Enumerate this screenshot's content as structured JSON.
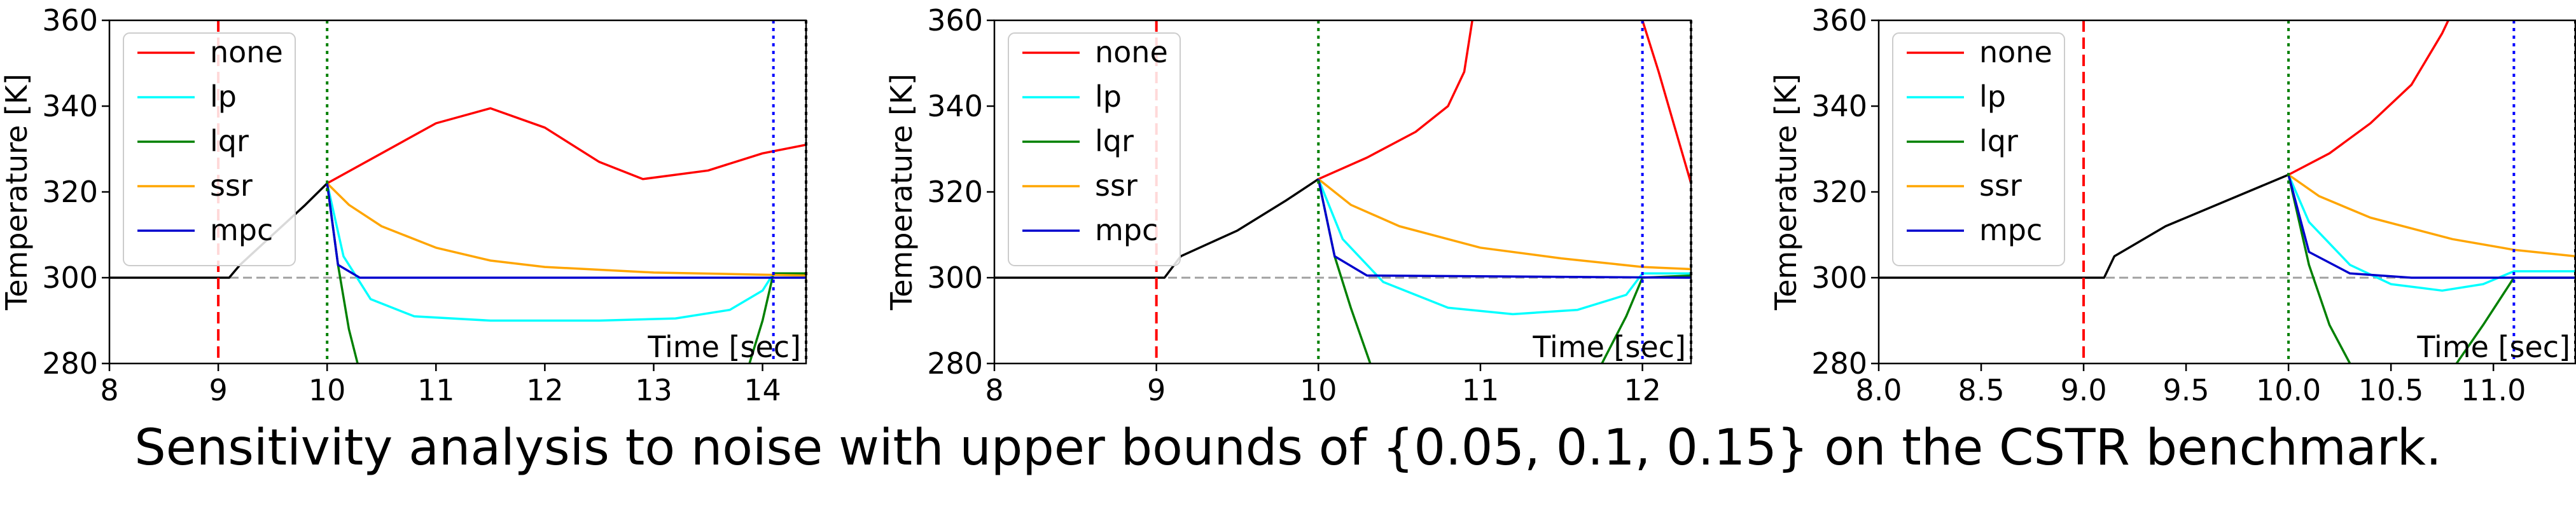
{
  "caption": "Sensitivity analysis to noise with upper bounds of {0.05, 0.1, 0.15} on the CSTR benchmark.",
  "chart_data": [
    {
      "type": "line",
      "xlabel": "Time [sec]",
      "ylabel": "Temperature [K]",
      "xlim": [
        8,
        14.4
      ],
      "ylim": [
        280,
        360
      ],
      "xticks": [
        8,
        9,
        10,
        11,
        12,
        13,
        14
      ],
      "xtick_labels": [
        "8",
        "9",
        "10",
        "11",
        "12",
        "13",
        "14"
      ],
      "yticks": [
        280,
        300,
        320,
        340,
        360
      ],
      "ytick_labels": [
        "280",
        "300",
        "320",
        "340",
        "360"
      ],
      "legend": {
        "position": "top-left",
        "entries": [
          "none",
          "lp",
          "lqr",
          "ssr",
          "mpc"
        ]
      },
      "reference_line": {
        "y": 300,
        "color": "#a0a0a0",
        "style": "dashed"
      },
      "vlines": [
        {
          "x": 9,
          "color": "#ff0000",
          "style": "dashed"
        },
        {
          "x": 10,
          "color": "#008000",
          "style": "dotted"
        },
        {
          "x": 14.1,
          "color": "#0000ff",
          "style": "dotted"
        },
        {
          "x": 14.4,
          "color": "#000000",
          "style": "dotted"
        }
      ],
      "series": [
        {
          "name": "black",
          "color": "#000000",
          "points": [
            [
              8,
              300
            ],
            [
              9.1,
              300
            ],
            [
              9.2,
              303
            ],
            [
              9.5,
              310
            ],
            [
              9.8,
              317
            ],
            [
              10,
              322
            ]
          ]
        },
        {
          "name": "none",
          "color": "#ff0000",
          "points": [
            [
              10,
              322
            ],
            [
              10.5,
              329
            ],
            [
              11,
              336
            ],
            [
              11.5,
              339.5
            ],
            [
              12,
              335
            ],
            [
              12.5,
              327
            ],
            [
              12.9,
              323
            ],
            [
              13.5,
              325
            ],
            [
              14,
              329
            ],
            [
              14.4,
              331
            ]
          ]
        },
        {
          "name": "lp",
          "color": "#00ffff",
          "points": [
            [
              10,
              322
            ],
            [
              10.15,
              305
            ],
            [
              10.4,
              295
            ],
            [
              10.8,
              291
            ],
            [
              11.5,
              290
            ],
            [
              12.5,
              290
            ],
            [
              13.2,
              290.5
            ],
            [
              13.7,
              292.5
            ],
            [
              14,
              297
            ],
            [
              14.1,
              301
            ],
            [
              14.4,
              300.5
            ]
          ]
        },
        {
          "name": "lqr",
          "color": "#008000",
          "points": [
            [
              10,
              322
            ],
            [
              10.1,
              303
            ],
            [
              10.2,
              288
            ],
            [
              10.28,
              280
            ]
          ]
        },
        {
          "name": "lqr",
          "color": "#008000",
          "points": [
            [
              13.88,
              280
            ],
            [
              14,
              290
            ],
            [
              14.1,
              301
            ],
            [
              14.4,
              301
            ]
          ]
        },
        {
          "name": "ssr",
          "color": "#ffa500",
          "points": [
            [
              10,
              322
            ],
            [
              10.2,
              317
            ],
            [
              10.5,
              312
            ],
            [
              11,
              307
            ],
            [
              11.5,
              304
            ],
            [
              12,
              302.5
            ],
            [
              13,
              301.2
            ],
            [
              14.4,
              300.5
            ]
          ]
        },
        {
          "name": "mpc",
          "color": "#0000cd",
          "points": [
            [
              10,
              322
            ],
            [
              10.1,
              303
            ],
            [
              10.3,
              300
            ],
            [
              14.4,
              300
            ]
          ]
        }
      ]
    },
    {
      "type": "line",
      "xlabel": "Time [sec]",
      "ylabel": "Temperature [K]",
      "xlim": [
        8,
        12.3
      ],
      "ylim": [
        280,
        360
      ],
      "xticks": [
        8,
        9,
        10,
        11,
        12
      ],
      "xtick_labels": [
        "8",
        "9",
        "10",
        "11",
        "12"
      ],
      "yticks": [
        280,
        300,
        320,
        340,
        360
      ],
      "ytick_labels": [
        "280",
        "300",
        "320",
        "340",
        "360"
      ],
      "legend": {
        "position": "top-left",
        "entries": [
          "none",
          "lp",
          "lqr",
          "ssr",
          "mpc"
        ]
      },
      "reference_line": {
        "y": 300,
        "color": "#a0a0a0",
        "style": "dashed"
      },
      "vlines": [
        {
          "x": 9,
          "color": "#ff0000",
          "style": "dashed"
        },
        {
          "x": 10,
          "color": "#008000",
          "style": "dotted"
        },
        {
          "x": 12,
          "color": "#0000ff",
          "style": "dotted"
        },
        {
          "x": 12.3,
          "color": "#000000",
          "style": "dotted"
        }
      ],
      "series": [
        {
          "name": "black",
          "color": "#000000",
          "points": [
            [
              8,
              300
            ],
            [
              9.05,
              300
            ],
            [
              9.15,
              305
            ],
            [
              9.5,
              311
            ],
            [
              9.8,
              318
            ],
            [
              10,
              323
            ]
          ]
        },
        {
          "name": "none",
          "color": "#ff0000",
          "points": [
            [
              10,
              323
            ],
            [
              10.3,
              328
            ],
            [
              10.6,
              334
            ],
            [
              10.8,
              340
            ],
            [
              10.9,
              348
            ],
            [
              10.95,
              360
            ]
          ]
        },
        {
          "name": "none",
          "color": "#ff0000",
          "points": [
            [
              12,
              360
            ],
            [
              12.1,
              348
            ],
            [
              12.2,
              335
            ],
            [
              12.3,
              322
            ]
          ]
        },
        {
          "name": "lp",
          "color": "#00ffff",
          "points": [
            [
              10,
              323
            ],
            [
              10.15,
              309
            ],
            [
              10.4,
              299
            ],
            [
              10.8,
              293
            ],
            [
              11.2,
              291.5
            ],
            [
              11.6,
              292.5
            ],
            [
              11.9,
              296
            ],
            [
              12,
              301
            ],
            [
              12.3,
              301
            ]
          ]
        },
        {
          "name": "lqr",
          "color": "#008000",
          "points": [
            [
              10,
              323
            ],
            [
              10.1,
              305
            ],
            [
              10.2,
              293
            ],
            [
              10.32,
              280
            ]
          ]
        },
        {
          "name": "lqr",
          "color": "#008000",
          "points": [
            [
              11.75,
              280
            ],
            [
              11.9,
              291
            ],
            [
              12,
              300
            ],
            [
              12.3,
              300.5
            ]
          ]
        },
        {
          "name": "ssr",
          "color": "#ffa500",
          "points": [
            [
              10,
              323
            ],
            [
              10.2,
              317
            ],
            [
              10.5,
              312
            ],
            [
              11,
              307
            ],
            [
              11.5,
              304.5
            ],
            [
              12,
              302.5
            ],
            [
              12.3,
              302
            ]
          ]
        },
        {
          "name": "mpc",
          "color": "#0000cd",
          "points": [
            [
              10,
              323
            ],
            [
              10.1,
              305
            ],
            [
              10.3,
              300.5
            ],
            [
              12.3,
              300
            ]
          ]
        }
      ]
    },
    {
      "type": "line",
      "xlabel": "Time [sec]",
      "ylabel": "Temperature [K]",
      "xlim": [
        8,
        11.4
      ],
      "ylim": [
        280,
        360
      ],
      "xticks": [
        8,
        8.5,
        9,
        9.5,
        10,
        10.5,
        11
      ],
      "xtick_labels": [
        "8.0",
        "8.5",
        "9.0",
        "9.5",
        "10.0",
        "10.5",
        "11.0"
      ],
      "yticks": [
        280,
        300,
        320,
        340,
        360
      ],
      "ytick_labels": [
        "280",
        "300",
        "320",
        "340",
        "360"
      ],
      "legend": {
        "position": "top-left",
        "entries": [
          "none",
          "lp",
          "lqr",
          "ssr",
          "mpc"
        ]
      },
      "reference_line": {
        "y": 300,
        "color": "#a0a0a0",
        "style": "dashed"
      },
      "vlines": [
        {
          "x": 9,
          "color": "#ff0000",
          "style": "dashed"
        },
        {
          "x": 10,
          "color": "#008000",
          "style": "dotted"
        },
        {
          "x": 11.1,
          "color": "#0000ff",
          "style": "dotted"
        },
        {
          "x": 11.4,
          "color": "#000000",
          "style": "dotted"
        }
      ],
      "series": [
        {
          "name": "black",
          "color": "#000000",
          "points": [
            [
              8,
              300
            ],
            [
              9.1,
              300
            ],
            [
              9.15,
              305
            ],
            [
              9.4,
              312
            ],
            [
              9.7,
              318
            ],
            [
              10,
              324
            ]
          ]
        },
        {
          "name": "none",
          "color": "#ff0000",
          "points": [
            [
              10,
              324
            ],
            [
              10.2,
              329
            ],
            [
              10.4,
              336
            ],
            [
              10.6,
              345
            ],
            [
              10.75,
              357
            ],
            [
              10.78,
              360
            ]
          ]
        },
        {
          "name": "lp",
          "color": "#00ffff",
          "points": [
            [
              10,
              324
            ],
            [
              10.1,
              313
            ],
            [
              10.3,
              303
            ],
            [
              10.5,
              298.5
            ],
            [
              10.75,
              297
            ],
            [
              10.95,
              298.5
            ],
            [
              11.1,
              301.5
            ],
            [
              11.4,
              301.5
            ]
          ]
        },
        {
          "name": "lqr",
          "color": "#008000",
          "points": [
            [
              10,
              324
            ],
            [
              10.1,
              303
            ],
            [
              10.2,
              289
            ],
            [
              10.3,
              280
            ]
          ]
        },
        {
          "name": "lqr",
          "color": "#008000",
          "points": [
            [
              10.82,
              280
            ],
            [
              10.95,
              289
            ],
            [
              11.1,
              300
            ],
            [
              11.4,
              300
            ]
          ]
        },
        {
          "name": "ssr",
          "color": "#ffa500",
          "points": [
            [
              10,
              324
            ],
            [
              10.15,
              319
            ],
            [
              10.4,
              314
            ],
            [
              10.8,
              309
            ],
            [
              11.1,
              306.5
            ],
            [
              11.4,
              305
            ]
          ]
        },
        {
          "name": "mpc",
          "color": "#0000cd",
          "points": [
            [
              10,
              324
            ],
            [
              10.1,
              306
            ],
            [
              10.3,
              301
            ],
            [
              10.6,
              300
            ],
            [
              11.4,
              300
            ]
          ]
        }
      ]
    }
  ]
}
